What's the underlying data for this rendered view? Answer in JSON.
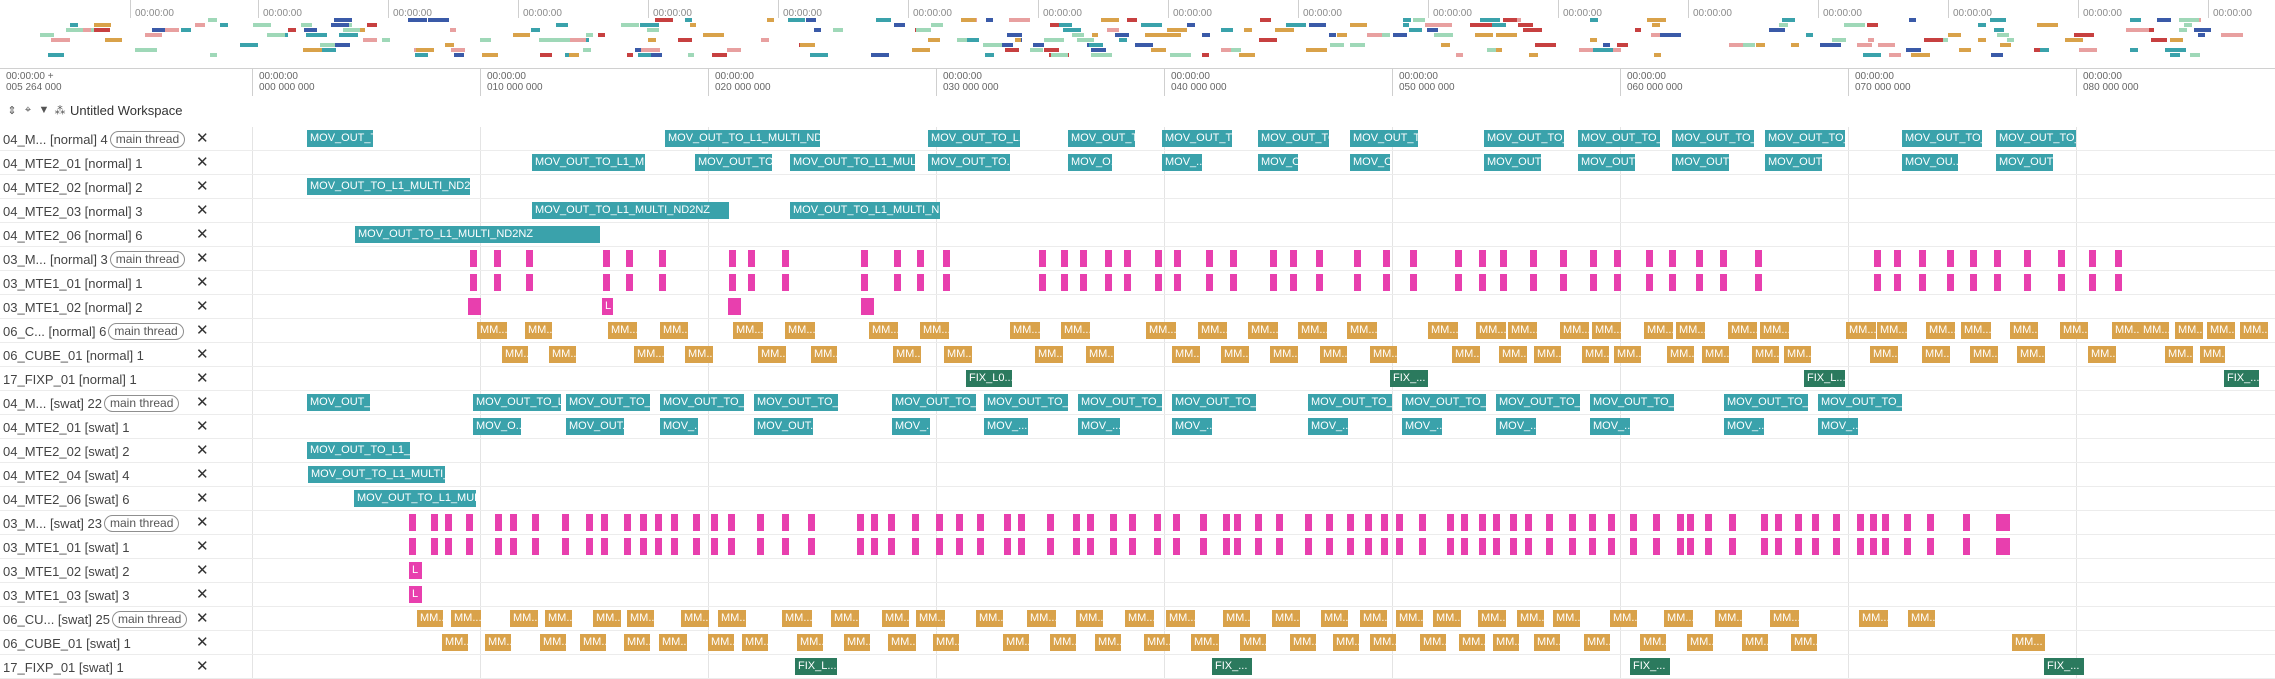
{
  "colors": {
    "teal": "#3aa2ab",
    "pink": "#e83fae",
    "orange": "#d9a24a",
    "green": "#2b7a5e"
  },
  "overview": {
    "tick_label": "00:00:00"
  },
  "axis": {
    "left_top": "00:00:00",
    "left_bottom": "005 264 000",
    "left_marker": "+",
    "ticks": [
      {
        "top": "00:00:00",
        "bottom": "000 000 000"
      },
      {
        "top": "00:00:00",
        "bottom": "010 000 000"
      },
      {
        "top": "00:00:00",
        "bottom": "020 000 000"
      },
      {
        "top": "00:00:00",
        "bottom": "030 000 000"
      },
      {
        "top": "00:00:00",
        "bottom": "040 000 000"
      },
      {
        "top": "00:00:00",
        "bottom": "050 000 000"
      },
      {
        "top": "00:00:00",
        "bottom": "060 000 000"
      },
      {
        "top": "00:00:00",
        "bottom": "070 000 000"
      },
      {
        "top": "00:00:00",
        "bottom": "080 000 000"
      }
    ]
  },
  "toolbar": {
    "workspace_title": "Untitled Workspace",
    "icons": [
      "expand-collapse-icon",
      "pin-icon",
      "filter-icon",
      "workspace-icon"
    ]
  },
  "rows": [
    {
      "label": "04_M... [normal] 4",
      "chip": "main thread",
      "close": "✕",
      "kind": "teal"
    },
    {
      "label": "04_MTE2_01 [normal] 1",
      "chip": "",
      "close": "✕",
      "kind": "teal"
    },
    {
      "label": "04_MTE2_02 [normal] 2",
      "chip": "",
      "close": "✕",
      "kind": "teal"
    },
    {
      "label": "04_MTE2_03 [normal] 3",
      "chip": "",
      "close": "✕",
      "kind": "teal"
    },
    {
      "label": "04_MTE2_06 [normal] 6",
      "chip": "",
      "close": "✕",
      "kind": "teal"
    },
    {
      "label": "03_M... [normal] 3",
      "chip": "main thread",
      "close": "✕",
      "kind": "pink"
    },
    {
      "label": "03_MTE1_01 [normal] 1",
      "chip": "",
      "close": "✕",
      "kind": "pink"
    },
    {
      "label": "03_MTE1_02 [normal] 2",
      "chip": "",
      "close": "✕",
      "kind": "pink"
    },
    {
      "label": "06_C... [normal] 6",
      "chip": "main thread",
      "close": "✕",
      "kind": "orange"
    },
    {
      "label": "06_CUBE_01 [normal] 1",
      "chip": "",
      "close": "✕",
      "kind": "orange"
    },
    {
      "label": "17_FIXP_01 [normal] 1",
      "chip": "",
      "close": "✕",
      "kind": "green"
    },
    {
      "label": "04_M... [swat] 22",
      "chip": "main thread",
      "close": "✕",
      "kind": "teal"
    },
    {
      "label": "04_MTE2_01 [swat] 1",
      "chip": "",
      "close": "✕",
      "kind": "teal"
    },
    {
      "label": "04_MTE2_02 [swat] 2",
      "chip": "",
      "close": "✕",
      "kind": "teal"
    },
    {
      "label": "04_MTE2_04 [swat] 4",
      "chip": "",
      "close": "✕",
      "kind": "teal"
    },
    {
      "label": "04_MTE2_06 [swat] 6",
      "chip": "",
      "close": "✕",
      "kind": "teal"
    },
    {
      "label": "03_M... [swat] 23",
      "chip": "main thread",
      "close": "✕",
      "kind": "pink"
    },
    {
      "label": "03_MTE1_01 [swat] 1",
      "chip": "",
      "close": "✕",
      "kind": "pink"
    },
    {
      "label": "03_MTE1_02 [swat] 2",
      "chip": "",
      "close": "✕",
      "kind": "pink"
    },
    {
      "label": "03_MTE1_03 [swat] 3",
      "chip": "",
      "close": "✕",
      "kind": "pink"
    },
    {
      "label": "06_CU... [swat] 25",
      "chip": "main thread",
      "close": "✕",
      "kind": "orange"
    },
    {
      "label": "06_CUBE_01 [swat] 1",
      "chip": "",
      "close": "✕",
      "kind": "orange"
    },
    {
      "label": "17_FIXP_01 [swat] 1",
      "chip": "",
      "close": "✕",
      "kind": "green"
    }
  ],
  "slices": [
    [
      {
        "label": "MOV_OUT_T..."
      },
      {
        "label": "MOV_OUT_TO_L1_MULTI_ND2NZ"
      },
      {
        "label": "MOV_OUT_TO_L1..."
      },
      {
        "label": "MOV_OUT_TO_..."
      },
      {
        "label": "MOV_OUT_T..."
      },
      {
        "label": "MOV_OUT_TO..."
      },
      {
        "label": "MOV_OUT_T..."
      },
      {
        "label": "MOV_OUT_TO_..."
      },
      {
        "label": "MOV_OUT_TO_L..."
      },
      {
        "label": "MOV_OUT_TO_L..."
      },
      {
        "label": "MOV_OUT_TO_L..."
      },
      {
        "label": "MOV_OUT_TO_..."
      },
      {
        "label": "MOV_OUT_TO_L..."
      }
    ],
    [
      {
        "label": "MOV_OUT_TO_L1_MU..."
      },
      {
        "label": "MOV_OUT_TO_L1_M..."
      },
      {
        "label": "MOV_OUT_TO_L1_MULTI..."
      },
      {
        "label": "MOV_OUT_TO..."
      },
      {
        "label": "MOV_O..."
      },
      {
        "label": "MOV_..."
      },
      {
        "label": "MOV_O..."
      },
      {
        "label": "MOV_O..."
      },
      {
        "label": "MOV_OUT..."
      },
      {
        "label": "MOV_OUT..."
      },
      {
        "label": "MOV_OUT..."
      },
      {
        "label": "MOV_OUT..."
      },
      {
        "label": "MOV_OU..."
      },
      {
        "label": "MOV_OUT..."
      }
    ],
    [
      {
        "label": "MOV_OUT_TO_L1_MULTI_ND2NZ"
      }
    ],
    [
      {
        "label": "MOV_OUT_TO_L1_MULTI_ND2NZ"
      },
      {
        "label": "MOV_OUT_TO_L1_MULTI_ND2NZ"
      }
    ],
    [
      {
        "label": "MOV_OUT_TO_L1_MULTI_ND2NZ"
      }
    ],
    [],
    [],
    [
      {
        "label": ""
      },
      {
        "label": "L"
      },
      {
        "label": ""
      },
      {
        "label": ""
      }
    ],
    [
      {
        "label": "MM..."
      },
      {
        "label": "MM..."
      },
      {
        "label": "MM..."
      },
      {
        "label": "MM..."
      },
      {
        "label": "MM..."
      },
      {
        "label": "MM..."
      },
      {
        "label": "MM..."
      },
      {
        "label": "MM..."
      },
      {
        "label": "MM..."
      },
      {
        "label": "MM..."
      },
      {
        "label": "MM..."
      },
      {
        "label": "MM..."
      },
      {
        "label": "MM..."
      },
      {
        "label": "MM..."
      },
      {
        "label": "MM..."
      },
      {
        "label": "MM..."
      },
      {
        "label": "MM..."
      },
      {
        "label": "MM..."
      },
      {
        "label": "MM..."
      },
      {
        "label": "MM..."
      },
      {
        "label": "MM..."
      },
      {
        "label": "MM..."
      },
      {
        "label": "MM..."
      },
      {
        "label": "MM..."
      },
      {
        "label": "MM..."
      },
      {
        "label": "MM..."
      },
      {
        "label": "MM..."
      },
      {
        "label": "MM..."
      },
      {
        "label": "MM..."
      },
      {
        "label": "MM..."
      },
      {
        "label": "MM..."
      },
      {
        "label": "MM..."
      },
      {
        "label": "MM..."
      },
      {
        "label": "MM..."
      },
      {
        "label": "MM..."
      }
    ],
    [
      {
        "label": "MM..."
      },
      {
        "label": "MM..."
      },
      {
        "label": "MM..."
      },
      {
        "label": "MM..."
      },
      {
        "label": "MM..."
      },
      {
        "label": "MM..."
      },
      {
        "label": "MM..."
      },
      {
        "label": "MM..."
      },
      {
        "label": "MM..."
      },
      {
        "label": "MM..."
      },
      {
        "label": "MM..."
      },
      {
        "label": "MM..."
      },
      {
        "label": "MM..."
      },
      {
        "label": "MM..."
      },
      {
        "label": "MM..."
      },
      {
        "label": "MM..."
      },
      {
        "label": "MM..."
      },
      {
        "label": "MM..."
      },
      {
        "label": "MM..."
      },
      {
        "label": "MM..."
      },
      {
        "label": "MM..."
      },
      {
        "label": "MM..."
      },
      {
        "label": "MM..."
      },
      {
        "label": "MM..."
      },
      {
        "label": "MM..."
      },
      {
        "label": "MM..."
      },
      {
        "label": "MM..."
      },
      {
        "label": "MM..."
      },
      {
        "label": "MM..."
      },
      {
        "label": "MM..."
      },
      {
        "label": "MM..."
      }
    ],
    [
      {
        "label": "FIX_L0..."
      },
      {
        "label": "FIX_..."
      },
      {
        "label": "FIX_L..."
      },
      {
        "label": "FIX_..."
      }
    ],
    [
      {
        "label": "MOV_OUT_..."
      },
      {
        "label": "MOV_OUT_TO_L..."
      },
      {
        "label": "MOV_OUT_TO_..."
      },
      {
        "label": "MOV_OUT_TO_..."
      },
      {
        "label": "MOV_OUT_TO_..."
      },
      {
        "label": "MOV_OUT_TO_..."
      },
      {
        "label": "MOV_OUT_TO_..."
      },
      {
        "label": "MOV_OUT_TO_..."
      },
      {
        "label": "MOV_OUT_TO_..."
      },
      {
        "label": "MOV_OUT_TO_..."
      },
      {
        "label": "MOV_OUT_TO_..."
      },
      {
        "label": "MOV_OUT_TO_..."
      },
      {
        "label": "MOV_OUT_TO_..."
      },
      {
        "label": "MOV_OUT_TO_..."
      },
      {
        "label": "MOV_OUT_TO_..."
      },
      {
        "label": "MOV_OUT_TO_..."
      }
    ],
    [
      {
        "label": "MOV_O..."
      },
      {
        "label": "MOV_OUT..."
      },
      {
        "label": "MOV_..."
      },
      {
        "label": "MOV_OUT..."
      },
      {
        "label": "MOV_..."
      },
      {
        "label": "MOV_..."
      },
      {
        "label": "MOV_..."
      },
      {
        "label": "MOV_..."
      },
      {
        "label": "MOV_..."
      },
      {
        "label": "MOV_..."
      },
      {
        "label": "MOV_..."
      },
      {
        "label": "MOV_..."
      },
      {
        "label": "MOV_..."
      },
      {
        "label": "MOV_..."
      }
    ],
    [
      {
        "label": "MOV_OUT_TO_L1_M..."
      }
    ],
    [
      {
        "label": "MOV_OUT_TO_L1_MULTI_N..."
      }
    ],
    [
      {
        "label": "MOV_OUT_TO_L1_MULT..."
      }
    ],
    [],
    [],
    [
      {
        "label": "L"
      }
    ],
    [
      {
        "label": "L"
      }
    ],
    [
      {
        "label": "MM..."
      },
      {
        "label": "MM..."
      },
      {
        "label": "MM..."
      },
      {
        "label": "MM..."
      },
      {
        "label": "MM..."
      },
      {
        "label": "MM..."
      },
      {
        "label": "MM..."
      },
      {
        "label": "MM..."
      },
      {
        "label": "MM..."
      },
      {
        "label": "MM..."
      },
      {
        "label": "MM..."
      },
      {
        "label": "MM..."
      },
      {
        "label": "MM..."
      },
      {
        "label": "MM..."
      },
      {
        "label": "MM..."
      },
      {
        "label": "MM..."
      },
      {
        "label": "MM..."
      },
      {
        "label": "MM..."
      },
      {
        "label": "MM..."
      },
      {
        "label": "MM..."
      },
      {
        "label": "MM..."
      },
      {
        "label": "MM..."
      },
      {
        "label": "MM..."
      },
      {
        "label": "MM..."
      },
      {
        "label": "MM..."
      },
      {
        "label": "MM..."
      },
      {
        "label": "MM..."
      },
      {
        "label": "MM..."
      },
      {
        "label": "MM..."
      },
      {
        "label": "MM..."
      },
      {
        "label": "MM..."
      },
      {
        "label": "MM..."
      }
    ],
    [
      {
        "label": "MM..."
      },
      {
        "label": "MM..."
      },
      {
        "label": "MM..."
      },
      {
        "label": "MM..."
      },
      {
        "label": "MM..."
      },
      {
        "label": "MM..."
      },
      {
        "label": "MM..."
      },
      {
        "label": "MM..."
      },
      {
        "label": "MM..."
      },
      {
        "label": "MM..."
      },
      {
        "label": "MM..."
      },
      {
        "label": "MM..."
      },
      {
        "label": "MM..."
      },
      {
        "label": "MM..."
      },
      {
        "label": "MM..."
      },
      {
        "label": "MM..."
      },
      {
        "label": "MM..."
      },
      {
        "label": "MM..."
      },
      {
        "label": "MM..."
      },
      {
        "label": "MM..."
      },
      {
        "label": "MM..."
      },
      {
        "label": "MM..."
      },
      {
        "label": "MM..."
      },
      {
        "label": "MM..."
      },
      {
        "label": "MM..."
      },
      {
        "label": "MM..."
      },
      {
        "label": "MM..."
      },
      {
        "label": "MM..."
      },
      {
        "label": "MM..."
      },
      {
        "label": "MM..."
      },
      {
        "label": "MM..."
      }
    ],
    [
      {
        "label": "FIX_L..."
      },
      {
        "label": "FIX_..."
      },
      {
        "label": "FIX_..."
      },
      {
        "label": "FIX_..."
      }
    ]
  ]
}
